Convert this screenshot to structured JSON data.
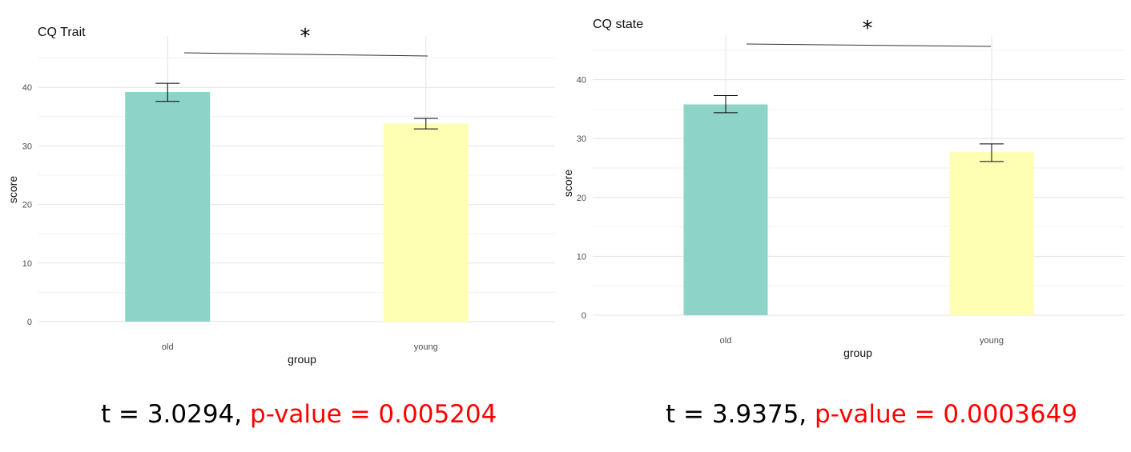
{
  "charts": [
    {
      "title": "CQ Trait",
      "xlabel": "group",
      "ylabel": "score",
      "significance": "*",
      "stat_t": "t = 3.0294,",
      "stat_p": "p-value = 0.005204"
    },
    {
      "title": "CQ state",
      "xlabel": "group",
      "ylabel": "score",
      "significance": "*",
      "stat_t": "t = 3.9375,",
      "stat_p": "p-value = 0.0003649"
    }
  ],
  "chart_data": [
    {
      "type": "bar",
      "title": "CQ Trait",
      "xlabel": "group",
      "ylabel": "score",
      "categories": [
        "old",
        "young"
      ],
      "values": [
        39.2,
        33.8
      ],
      "error_low": [
        37.6,
        32.9
      ],
      "error_high": [
        40.7,
        34.7
      ],
      "colors": [
        "#8dd3c7",
        "#ffffb3"
      ],
      "yticks": [
        0,
        10,
        20,
        30,
        40
      ],
      "ylim": [
        0,
        45
      ],
      "grid": true
    },
    {
      "type": "bar",
      "title": "CQ state",
      "xlabel": "group",
      "ylabel": "score",
      "categories": [
        "old",
        "young"
      ],
      "values": [
        35.8,
        27.7
      ],
      "error_low": [
        34.4,
        26.1
      ],
      "error_high": [
        37.3,
        29.1
      ],
      "colors": [
        "#8dd3c7",
        "#ffffb3"
      ],
      "yticks": [
        0,
        10,
        20,
        30,
        40
      ],
      "ylim": [
        0,
        45
      ],
      "grid": true
    }
  ]
}
